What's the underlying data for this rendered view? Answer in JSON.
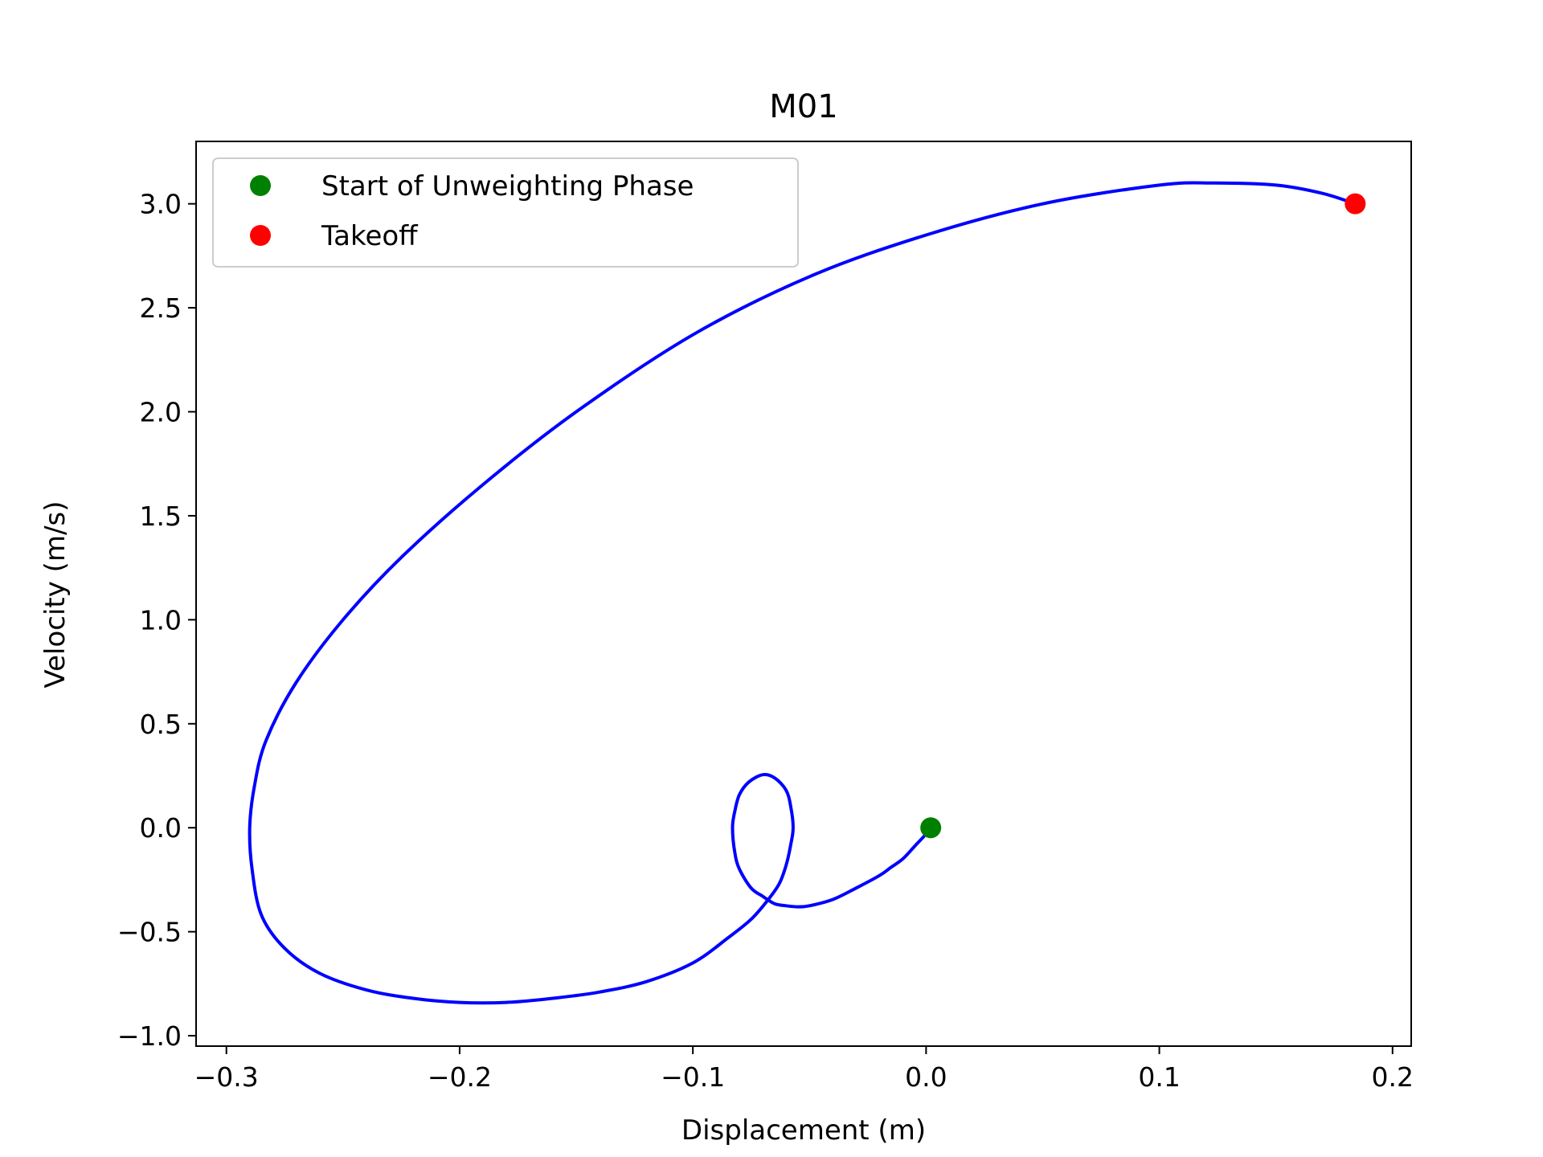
{
  "chart_data": {
    "type": "line",
    "title": "M01",
    "xlabel": "Displacement (m)",
    "ylabel": "Velocity (m/s)",
    "xlim": [
      -0.313,
      0.208
    ],
    "ylim": [
      -1.05,
      3.3
    ],
    "xticks": [
      -0.3,
      -0.2,
      -0.1,
      0.0,
      0.1,
      0.2
    ],
    "xtick_labels": [
      "−0.3",
      "−0.2",
      "−0.1",
      "0.0",
      "0.1",
      "0.2"
    ],
    "yticks": [
      -1.0,
      -0.5,
      0.0,
      0.5,
      1.0,
      1.5,
      2.0,
      2.5,
      3.0
    ],
    "ytick_labels": [
      "−1.0",
      "−0.5",
      "0.0",
      "0.5",
      "1.0",
      "1.5",
      "2.0",
      "2.5",
      "3.0"
    ],
    "grid": false,
    "legend_position": "upper-left",
    "series": [
      {
        "color": "#0000ff",
        "x": [
          0.002,
          0.0,
          -0.005,
          -0.01,
          -0.015,
          -0.02,
          -0.03,
          -0.04,
          -0.05,
          -0.055,
          -0.06,
          -0.065,
          -0.07,
          -0.075,
          -0.08,
          -0.082,
          -0.083,
          -0.082,
          -0.08,
          -0.076,
          -0.07,
          -0.065,
          -0.06,
          -0.058,
          -0.057,
          -0.058,
          -0.06,
          -0.063,
          -0.068,
          -0.075,
          -0.085,
          -0.1,
          -0.12,
          -0.14,
          -0.16,
          -0.18,
          -0.2,
          -0.22,
          -0.24,
          -0.26,
          -0.275,
          -0.285,
          -0.289,
          -0.29,
          -0.288,
          -0.283,
          -0.27,
          -0.25,
          -0.225,
          -0.19,
          -0.15,
          -0.1,
          -0.05,
          0.0,
          0.05,
          0.1,
          0.124,
          0.15,
          0.17,
          0.184
        ],
        "y": [
          0.0,
          -0.03,
          -0.09,
          -0.15,
          -0.19,
          -0.23,
          -0.29,
          -0.345,
          -0.375,
          -0.38,
          -0.375,
          -0.365,
          -0.33,
          -0.29,
          -0.2,
          -0.12,
          0.0,
          0.08,
          0.16,
          0.22,
          0.255,
          0.24,
          0.18,
          0.1,
          0.0,
          -0.08,
          -0.18,
          -0.27,
          -0.35,
          -0.44,
          -0.53,
          -0.65,
          -0.74,
          -0.79,
          -0.82,
          -0.84,
          -0.84,
          -0.82,
          -0.78,
          -0.7,
          -0.58,
          -0.42,
          -0.2,
          0.0,
          0.2,
          0.42,
          0.7,
          1.0,
          1.3,
          1.65,
          2.0,
          2.37,
          2.65,
          2.85,
          3.0,
          3.09,
          3.1,
          3.09,
          3.05,
          3.0
        ]
      }
    ],
    "markers": [
      {
        "name": "Start of Unweighting Phase",
        "x": 0.002,
        "y": 0.0,
        "color": "#008000"
      },
      {
        "name": "Takeoff",
        "x": 0.184,
        "y": 3.0,
        "color": "#ff0000"
      }
    ]
  }
}
